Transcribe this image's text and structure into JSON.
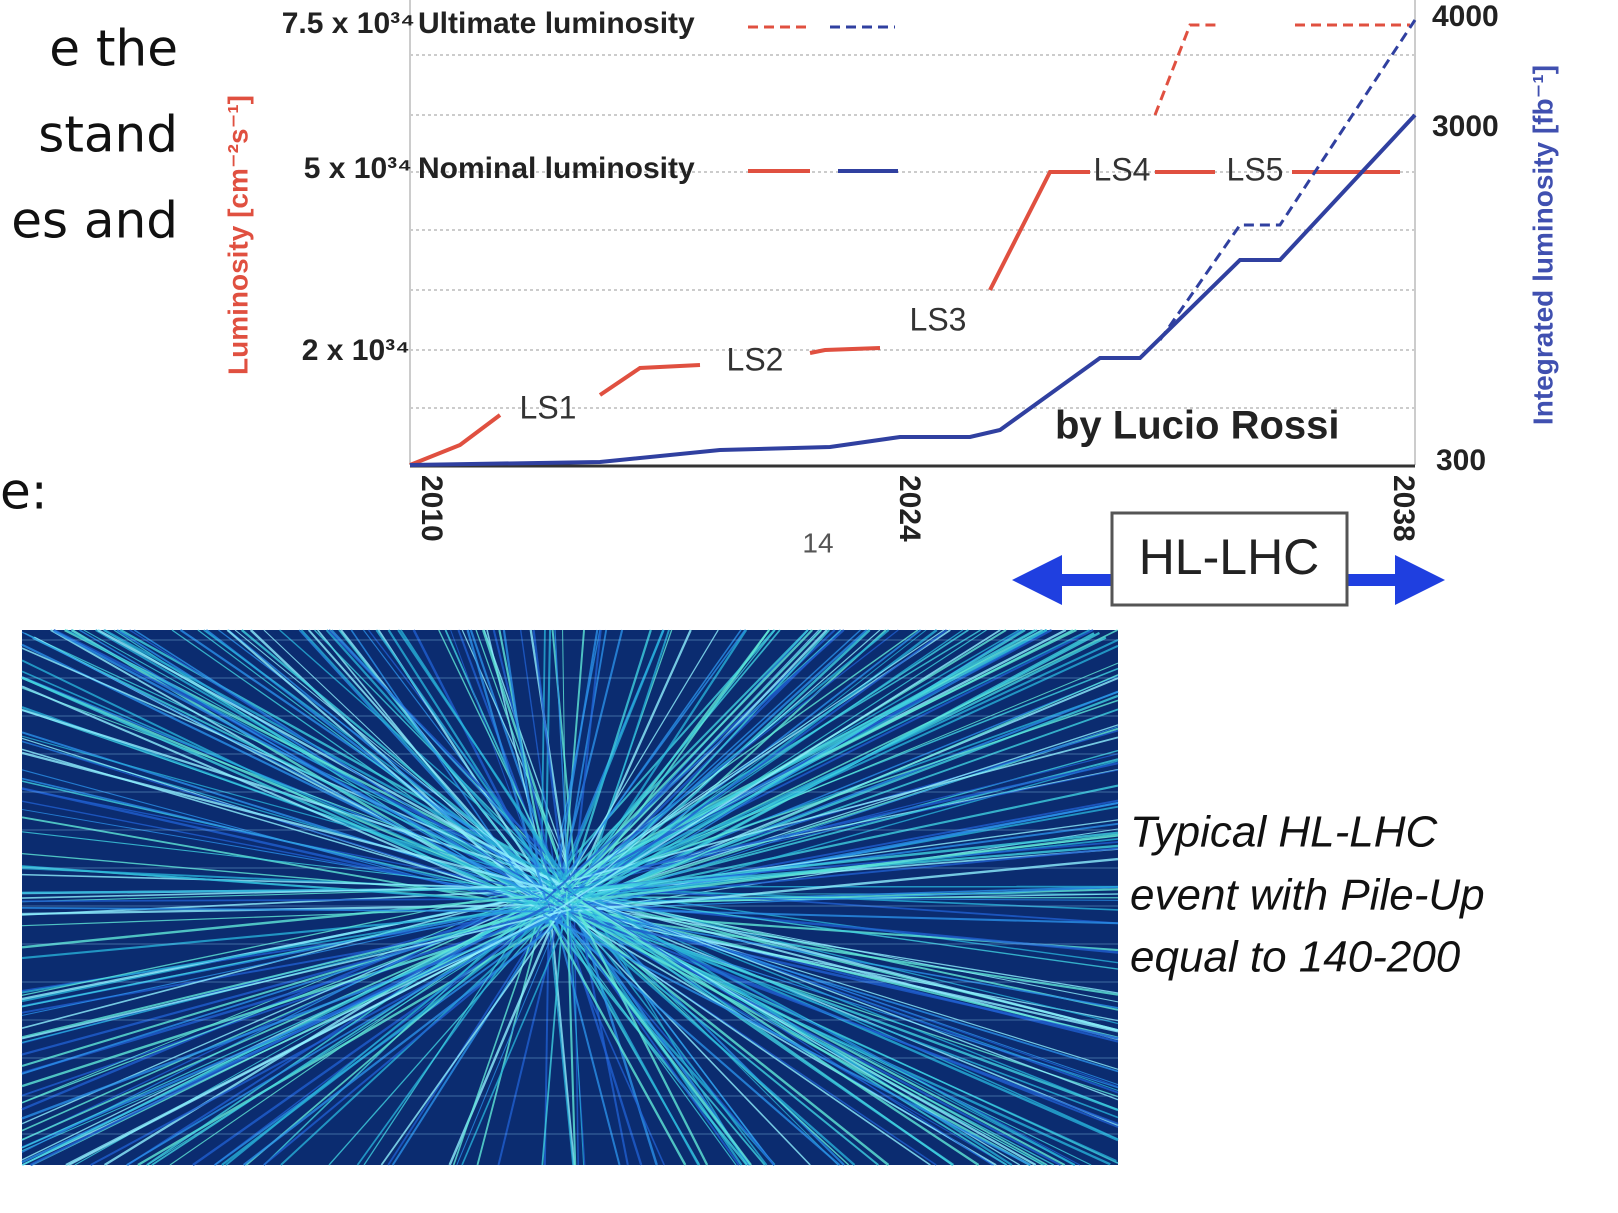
{
  "left_text": [
    "e  the",
    "stand",
    "es  and",
    "e:"
  ],
  "figure": {
    "y_label": "Luminosity [cm⁻²s⁻¹]",
    "y2_label": "Integrated luminosity [fb⁻¹]",
    "y_ticks": [
      "7.5 x 10³⁴",
      "5 x 10³⁴",
      "2 x 10³⁴"
    ],
    "y2_ticks": [
      "4000",
      "3000",
      "300"
    ],
    "legend": [
      "Ultimate luminosity",
      "Nominal luminosity"
    ],
    "phases": [
      "LS1",
      "LS2",
      "LS3",
      "LS4",
      "LS5"
    ],
    "credit": "by Lucio Rossi",
    "x_ticks": [
      "2010",
      "2024",
      "2038"
    ],
    "page_number": "14",
    "era": "HL-LHC"
  },
  "caption": [
    "Typical HL-LHC",
    "event with Pile-Up",
    "equal to 140-200"
  ]
}
